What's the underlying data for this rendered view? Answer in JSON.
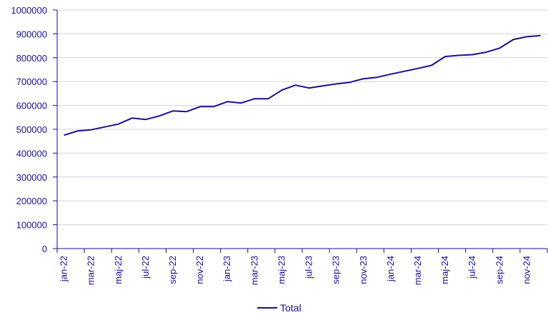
{
  "chart_data": {
    "type": "line",
    "title": "",
    "xlabel": "",
    "ylabel": "",
    "ylim": [
      0,
      1000000
    ],
    "y_ticks": [
      0,
      100000,
      200000,
      300000,
      400000,
      500000,
      600000,
      700000,
      800000,
      900000,
      1000000
    ],
    "y_tick_labels": [
      "0",
      "100000",
      "200000",
      "300000",
      "400000",
      "500000",
      "600000",
      "700000",
      "800000",
      "900000",
      "1000000"
    ],
    "grid": "horizontal",
    "legend_position": "bottom-center",
    "categories": [
      "jan-22",
      "feb-22",
      "mar-22",
      "apr-22",
      "maj-22",
      "jun-22",
      "jul-22",
      "aug-22",
      "sep-22",
      "okt-22",
      "nov-22",
      "dec-22",
      "jan-23",
      "feb-23",
      "mar-23",
      "apr-23",
      "maj-23",
      "jun-23",
      "jul-23",
      "aug-23",
      "sep-23",
      "okt-23",
      "nov-23",
      "dec-23",
      "jan-24",
      "feb-24",
      "mar-24",
      "apr-24",
      "maj-24",
      "jun-24",
      "jul-24",
      "aug-24",
      "sep-24",
      "okt-24",
      "nov-24",
      "dec-24"
    ],
    "x_tick_labels": [
      "jan-22",
      "mar-22",
      "maj-22",
      "jul-22",
      "sep-22",
      "nov-22",
      "jan-23",
      "mar-23",
      "maj-23",
      "jul-23",
      "sep-23",
      "nov-23",
      "jan-24",
      "mar-24",
      "maj-24",
      "jul-24",
      "sep-24",
      "nov-24"
    ],
    "series": [
      {
        "name": "Total",
        "color": "#1a0f91",
        "values": [
          475000,
          493000,
          498000,
          510000,
          522000,
          547000,
          541000,
          556000,
          577000,
          574000,
          595000,
          595000,
          616000,
          610000,
          628000,
          628000,
          664000,
          685000,
          673000,
          682000,
          690000,
          697000,
          712000,
          718000,
          731000,
          743000,
          755000,
          768000,
          805000,
          810000,
          813000,
          823000,
          840000,
          876000,
          888000,
          893000
        ]
      }
    ]
  },
  "colors": {
    "line": "#1a0f91",
    "text": "#1a0f91",
    "grid": "#d0d0e0",
    "axis": "#1a0f91"
  }
}
